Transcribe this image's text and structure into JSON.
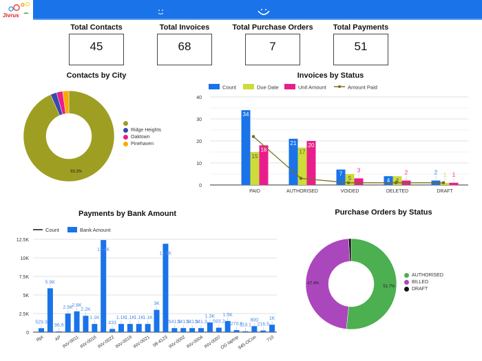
{
  "header": {
    "logo_text": "Jivrus",
    "icons": [
      "face-icon-small",
      "smile-icon"
    ]
  },
  "kpis": [
    {
      "label": "Total Contacts",
      "value": "45"
    },
    {
      "label": "Total Invoices",
      "value": "68"
    },
    {
      "label": "Total Purchase Orders",
      "value": "7"
    },
    {
      "label": "Total Payments",
      "value": "51"
    }
  ],
  "chart_data": [
    {
      "type": "pie",
      "donut": true,
      "title": "Contacts by City",
      "categories": [
        "",
        "Ridge Heights",
        "Oaktown",
        "Pinehaven"
      ],
      "values": [
        93.3,
        2.2,
        2.2,
        2.2
      ],
      "colors": [
        "#9e9e23",
        "#3949ab",
        "#e91e8c",
        "#f9ab00"
      ],
      "slice_labels": [
        "93.3%",
        "",
        "",
        ""
      ],
      "legend": "right"
    },
    {
      "type": "bar",
      "title": "Invoices by Status",
      "categories": [
        "PAID",
        "AUTHORISED",
        "VOIDED",
        "DELETED",
        "DRAFT"
      ],
      "series": [
        {
          "name": "Count",
          "kind": "bar",
          "color": "#1a73e8",
          "values": [
            34,
            21,
            7,
            4,
            2
          ]
        },
        {
          "name": "Due Date",
          "kind": "bar",
          "color": "#cddc39",
          "values": [
            15,
            17,
            5,
            4,
            1
          ]
        },
        {
          "name": "Unit Amount",
          "kind": "bar",
          "color": "#e91e8c",
          "values": [
            18,
            20,
            3,
            2,
            1
          ]
        },
        {
          "name": "Amount Paid",
          "kind": "line",
          "color": "#7a6f1a",
          "values": [
            22,
            3,
            1,
            1,
            1
          ]
        }
      ],
      "yticks": [
        0,
        10,
        20,
        30,
        40
      ],
      "ylim": [
        0,
        40
      ],
      "grid": true,
      "legend": "top"
    },
    {
      "type": "bar",
      "title": "Payments by Bank Amount",
      "categories": [
        "Rpt",
        "",
        "AP",
        "",
        "INV-0011",
        "",
        "INV-0016",
        "",
        "INV-0022",
        "",
        "INV-0019",
        "",
        "INV-0021",
        "",
        "08-4123",
        "",
        "INV-0002",
        "",
        "INV-0004",
        "",
        "INV-0007",
        "",
        "OG laptop",
        "",
        "945-OCon",
        "",
        "710"
      ],
      "series": [
        {
          "name": "Count",
          "kind": "line",
          "color": "#111111",
          "values": []
        },
        {
          "name": "Bank Amount",
          "kind": "bar",
          "color": "#1a73e8",
          "values": [
            529.3,
            5900,
            96.9,
            2500,
            2800,
            2200,
            1100,
            12400,
            433,
            1100,
            1100,
            1100,
            1100,
            3000,
            11900,
            541.3,
            541.3,
            541.3,
            541.3,
            1300,
            593.2,
            1500,
            270.6,
            119.1,
            800,
            216.5,
            1000
          ],
          "labels": [
            "529.3",
            "5.9K",
            "96.9",
            "2.5K",
            "2.8K",
            "2.2K",
            "1.1K",
            "12.4K",
            "433",
            "1.1K",
            "1.1K",
            "1.1K",
            "1.1K",
            "3K",
            "11.9K",
            "541.3",
            "541.3",
            "541.3",
            "541.3",
            "1.3K",
            "593.2",
            "1.5K",
            "270.6",
            "119.1",
            "800",
            "216.5",
            "1K"
          ]
        }
      ],
      "yticks": [
        "0",
        "2.5K",
        "5K",
        "7.5K",
        "10K",
        "12.5K"
      ],
      "ytick_values": [
        0,
        2500,
        5000,
        7500,
        10000,
        12500
      ],
      "ylim": [
        0,
        12500
      ],
      "grid": true,
      "legend": "top-left"
    },
    {
      "type": "pie",
      "donut": true,
      "title": "Purchase Orders by Status",
      "categories": [
        "AUTHORISED",
        "BILLED",
        "DRAFT"
      ],
      "values": [
        51.7,
        47.4,
        0.9
      ],
      "colors": [
        "#4caf50",
        "#ab47bc",
        "#111111"
      ],
      "slice_labels": [
        "51.7%",
        "47.4%",
        ""
      ],
      "legend": "right"
    }
  ]
}
